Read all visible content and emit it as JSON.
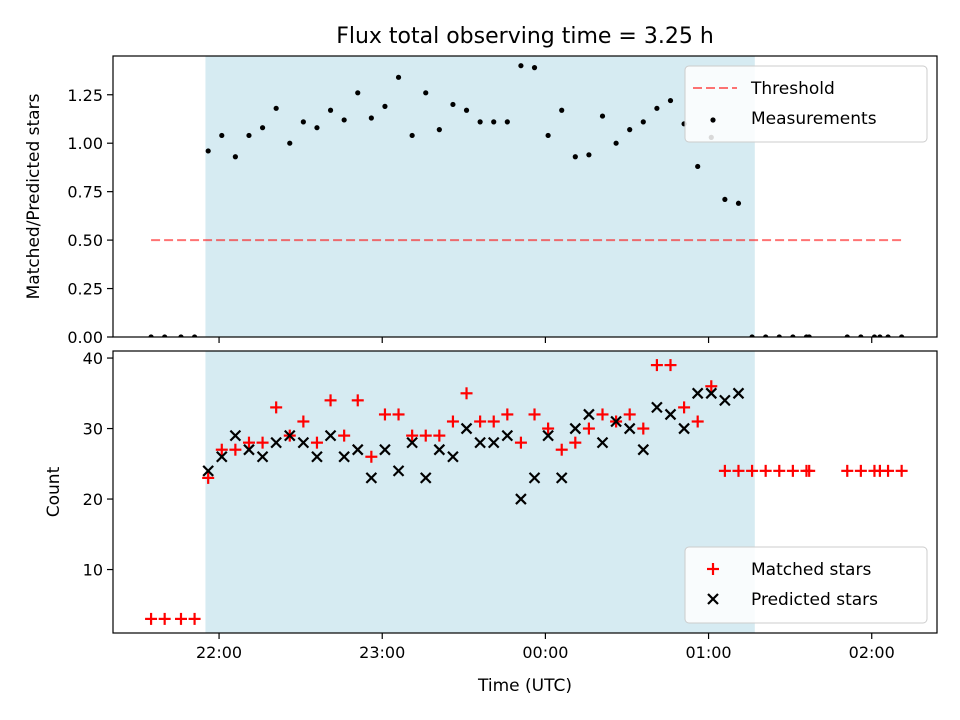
{
  "figure": {
    "title": "Flux total observing time = 3.25 h",
    "shaded_span": [
      "21:55",
      "01:17"
    ],
    "shade_color": "#add8e6"
  },
  "chart_data": [
    {
      "type": "scatter",
      "ylabel": "Matched/Predicted stars",
      "xlabel": "",
      "ylim": [
        0,
        1.45
      ],
      "yticks": [
        0.0,
        0.25,
        0.5,
        0.75,
        1.0,
        1.25
      ],
      "ytick_labels": [
        "0.00",
        "0.25",
        "0.50",
        "0.75",
        "1.00",
        "1.25"
      ],
      "legend_placement": "top-right",
      "threshold": {
        "name": "Threshold",
        "value": 0.5,
        "x_range": [
          "21:35",
          "02:11"
        ],
        "color": "#ff0000",
        "style": "dashed"
      },
      "series": [
        {
          "name": "Measurements",
          "color": "#000000",
          "marker": "dot",
          "points": [
            [
              "21:35",
              0.0
            ],
            [
              "21:40",
              0.0
            ],
            [
              "21:46",
              0.0
            ],
            [
              "21:51",
              0.0
            ],
            [
              "21:56",
              0.96
            ],
            [
              "22:01",
              1.04
            ],
            [
              "22:06",
              0.93
            ],
            [
              "22:11",
              1.04
            ],
            [
              "22:16",
              1.08
            ],
            [
              "22:21",
              1.18
            ],
            [
              "22:26",
              1.0
            ],
            [
              "22:31",
              1.11
            ],
            [
              "22:36",
              1.08
            ],
            [
              "22:41",
              1.17
            ],
            [
              "22:46",
              1.12
            ],
            [
              "22:51",
              1.26
            ],
            [
              "22:56",
              1.13
            ],
            [
              "23:01",
              1.19
            ],
            [
              "23:06",
              1.34
            ],
            [
              "23:11",
              1.04
            ],
            [
              "23:16",
              1.26
            ],
            [
              "23:21",
              1.07
            ],
            [
              "23:26",
              1.2
            ],
            [
              "23:31",
              1.17
            ],
            [
              "23:36",
              1.11
            ],
            [
              "23:41",
              1.11
            ],
            [
              "23:46",
              1.11
            ],
            [
              "23:51",
              1.4
            ],
            [
              "23:56",
              1.39
            ],
            [
              "00:01",
              1.04
            ],
            [
              "00:06",
              1.17
            ],
            [
              "00:11",
              0.93
            ],
            [
              "00:16",
              0.94
            ],
            [
              "00:21",
              1.14
            ],
            [
              "00:26",
              1.0
            ],
            [
              "00:31",
              1.07
            ],
            [
              "00:36",
              1.11
            ],
            [
              "00:41",
              1.18
            ],
            [
              "00:46",
              1.22
            ],
            [
              "00:51",
              1.1
            ],
            [
              "00:56",
              0.88
            ],
            [
              "01:01",
              1.03
            ],
            [
              "01:06",
              0.71
            ],
            [
              "01:11",
              0.69
            ],
            [
              "01:16",
              0.0
            ],
            [
              "01:21",
              0.0
            ],
            [
              "01:26",
              0.0
            ],
            [
              "01:31",
              0.0
            ],
            [
              "01:36",
              0.0
            ],
            [
              "01:37",
              0.0
            ],
            [
              "01:51",
              0.0
            ],
            [
              "01:56",
              0.0
            ],
            [
              "02:01",
              0.0
            ],
            [
              "02:03",
              0.0
            ],
            [
              "02:06",
              0.0
            ],
            [
              "02:11",
              0.0
            ]
          ]
        }
      ]
    },
    {
      "type": "scatter",
      "ylabel": "Count",
      "xlabel": "Time (UTC)",
      "ylim": [
        1,
        41
      ],
      "yticks": [
        10,
        20,
        30,
        40
      ],
      "ytick_labels": [
        "10",
        "20",
        "30",
        "40"
      ],
      "xlim": [
        "21:21",
        "02:24"
      ],
      "xticks": [
        "22:00",
        "23:00",
        "00:00",
        "01:00",
        "02:00"
      ],
      "legend_placement": "bottom-right",
      "series": [
        {
          "name": "Matched stars",
          "color": "#ff0000",
          "marker": "plus",
          "points": [
            [
              "21:35",
              3
            ],
            [
              "21:40",
              3
            ],
            [
              "21:46",
              3
            ],
            [
              "21:51",
              3
            ],
            [
              "21:56",
              23
            ],
            [
              "22:01",
              27
            ],
            [
              "22:06",
              27
            ],
            [
              "22:11",
              28
            ],
            [
              "22:16",
              28
            ],
            [
              "22:21",
              33
            ],
            [
              "22:26",
              29
            ],
            [
              "22:31",
              31
            ],
            [
              "22:36",
              28
            ],
            [
              "22:41",
              34
            ],
            [
              "22:46",
              29
            ],
            [
              "22:51",
              34
            ],
            [
              "22:56",
              26
            ],
            [
              "23:01",
              32
            ],
            [
              "23:06",
              32
            ],
            [
              "23:11",
              29
            ],
            [
              "23:16",
              29
            ],
            [
              "23:21",
              29
            ],
            [
              "23:26",
              31
            ],
            [
              "23:31",
              35
            ],
            [
              "23:36",
              31
            ],
            [
              "23:41",
              31
            ],
            [
              "23:46",
              32
            ],
            [
              "23:51",
              28
            ],
            [
              "23:56",
              32
            ],
            [
              "00:01",
              30
            ],
            [
              "00:06",
              27
            ],
            [
              "00:11",
              28
            ],
            [
              "00:16",
              30
            ],
            [
              "00:21",
              32
            ],
            [
              "00:26",
              31
            ],
            [
              "00:31",
              32
            ],
            [
              "00:36",
              30
            ],
            [
              "00:41",
              39
            ],
            [
              "00:46",
              39
            ],
            [
              "00:51",
              33
            ],
            [
              "00:56",
              31
            ],
            [
              "01:01",
              36
            ],
            [
              "01:06",
              24
            ],
            [
              "01:11",
              24
            ],
            [
              "01:16",
              24
            ],
            [
              "01:21",
              24
            ],
            [
              "01:26",
              24
            ],
            [
              "01:31",
              24
            ],
            [
              "01:36",
              24
            ],
            [
              "01:37",
              24
            ],
            [
              "01:51",
              24
            ],
            [
              "01:56",
              24
            ],
            [
              "02:01",
              24
            ],
            [
              "02:03",
              24
            ],
            [
              "02:06",
              24
            ],
            [
              "02:11",
              24
            ]
          ]
        },
        {
          "name": "Predicted stars",
          "color": "#000000",
          "marker": "x",
          "points": [
            [
              "21:56",
              24
            ],
            [
              "22:01",
              26
            ],
            [
              "22:06",
              29
            ],
            [
              "22:11",
              27
            ],
            [
              "22:16",
              26
            ],
            [
              "22:21",
              28
            ],
            [
              "22:26",
              29
            ],
            [
              "22:31",
              28
            ],
            [
              "22:36",
              26
            ],
            [
              "22:41",
              29
            ],
            [
              "22:46",
              26
            ],
            [
              "22:51",
              27
            ],
            [
              "22:56",
              23
            ],
            [
              "23:01",
              27
            ],
            [
              "23:06",
              24
            ],
            [
              "23:11",
              28
            ],
            [
              "23:16",
              23
            ],
            [
              "23:21",
              27
            ],
            [
              "23:26",
              26
            ],
            [
              "23:31",
              30
            ],
            [
              "23:36",
              28
            ],
            [
              "23:41",
              28
            ],
            [
              "23:46",
              29
            ],
            [
              "23:51",
              20
            ],
            [
              "23:56",
              23
            ],
            [
              "00:01",
              29
            ],
            [
              "00:06",
              23
            ],
            [
              "00:11",
              30
            ],
            [
              "00:16",
              32
            ],
            [
              "00:21",
              28
            ],
            [
              "00:26",
              31
            ],
            [
              "00:31",
              30
            ],
            [
              "00:36",
              27
            ],
            [
              "00:41",
              33
            ],
            [
              "00:46",
              32
            ],
            [
              "00:51",
              30
            ],
            [
              "00:56",
              35
            ],
            [
              "01:01",
              35
            ],
            [
              "01:06",
              34
            ],
            [
              "01:11",
              35
            ]
          ]
        }
      ]
    }
  ]
}
